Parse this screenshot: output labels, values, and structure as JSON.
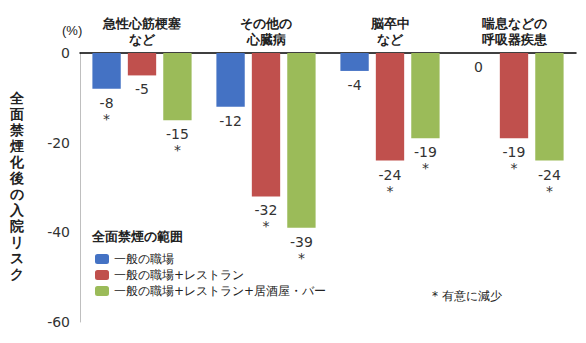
{
  "chart_data": {
    "type": "bar",
    "ylabel": "全面禁煙化後の入院リスク",
    "categories": [
      "急性心筋梗塞\nなど",
      "その他の\n心臓病",
      "脳卒中\nなど",
      "喘息などの\n呼吸器疾患"
    ],
    "series": [
      {
        "name": "一般の職場",
        "color": "#4472c4",
        "values": [
          -8,
          -12,
          -4,
          0
        ],
        "value_labels": [
          "-8\n*",
          "-12",
          "-4",
          "0"
        ]
      },
      {
        "name": "一般の職場+レストラン",
        "color": "#c0504d",
        "values": [
          -5,
          -32,
          -24,
          -19
        ],
        "value_labels": [
          "-5",
          "-32\n*",
          "-24\n*",
          "-19\n*"
        ]
      },
      {
        "name": "一般の職場+レストラン+居酒屋・バー",
        "color": "#9bbb59",
        "values": [
          -15,
          -39,
          -19,
          -24
        ],
        "value_labels": [
          "-15\n*",
          "-39\n*",
          "-19\n*",
          "-24\n*"
        ]
      }
    ],
    "ylim": [
      -60,
      0
    ],
    "yticks": [
      0,
      -20,
      -40,
      -60
    ],
    "grid": false,
    "legend": "bottom-left",
    "data_labels": true,
    "annotations": [
      {
        "text": "(%)"
      },
      {
        "text": "全面禁煙の範囲"
      },
      {
        "text": "* 有意に減少"
      }
    ]
  }
}
